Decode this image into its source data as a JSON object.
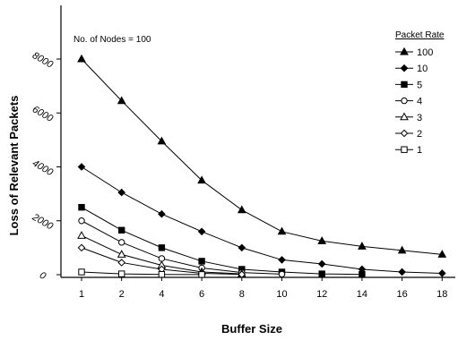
{
  "chart_data": {
    "type": "line",
    "xlabel": "Buffer Size",
    "ylabel": "Loss of Relevant Packets",
    "annotation": "No. of Nodes = 100",
    "legend_title": "Packet Rate",
    "legend_position": "top-right",
    "grid": false,
    "x_ticks": [
      "1",
      "2",
      "4",
      "6",
      "8",
      "10",
      "12",
      "14",
      "16",
      "18"
    ],
    "y_ticks": [
      0,
      2000,
      4000,
      6000,
      8000
    ],
    "ylim": [
      0,
      9500
    ],
    "series": [
      {
        "name": "100",
        "marker": "triangle-filled",
        "values": [
          8000,
          6450,
          4950,
          3500,
          2400,
          1600,
          1250,
          1050,
          900,
          750
        ]
      },
      {
        "name": "10",
        "marker": "diamond-filled",
        "values": [
          4000,
          3050,
          2250,
          1600,
          1000,
          550,
          400,
          200,
          100,
          50
        ]
      },
      {
        "name": "5",
        "marker": "square-filled",
        "values": [
          2500,
          1650,
          1000,
          500,
          200,
          100,
          30,
          10,
          null,
          null
        ]
      },
      {
        "name": "4",
        "marker": "circle-open",
        "values": [
          2000,
          1200,
          600,
          250,
          80,
          20,
          null,
          null,
          null,
          null
        ]
      },
      {
        "name": "3",
        "marker": "triangle-open",
        "values": [
          1450,
          750,
          350,
          100,
          30,
          null,
          null,
          null,
          null,
          null
        ]
      },
      {
        "name": "2",
        "marker": "diamond-open",
        "values": [
          1000,
          450,
          200,
          50,
          10,
          null,
          null,
          null,
          null,
          null
        ]
      },
      {
        "name": "1",
        "marker": "square-open",
        "values": [
          100,
          30,
          10,
          5,
          null,
          null,
          null,
          null,
          null,
          null
        ]
      }
    ]
  }
}
